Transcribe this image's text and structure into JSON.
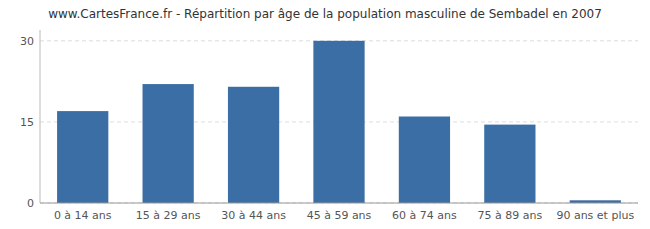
{
  "chart_data": {
    "type": "bar",
    "title": "www.CartesFrance.fr - Répartition par âge de la population masculine de Sembadel en 2007",
    "categories": [
      "0 à 14 ans",
      "15 à 29 ans",
      "30 à 44 ans",
      "45 à 59 ans",
      "60 à 74 ans",
      "75 à 89 ans",
      "90 ans et plus"
    ],
    "values": [
      17,
      22,
      21.5,
      30,
      16,
      14.5,
      0.5
    ],
    "color": "#3a6ea5",
    "ylim": [
      0,
      32
    ],
    "yticks": [
      0,
      15,
      30
    ],
    "grid": true
  }
}
